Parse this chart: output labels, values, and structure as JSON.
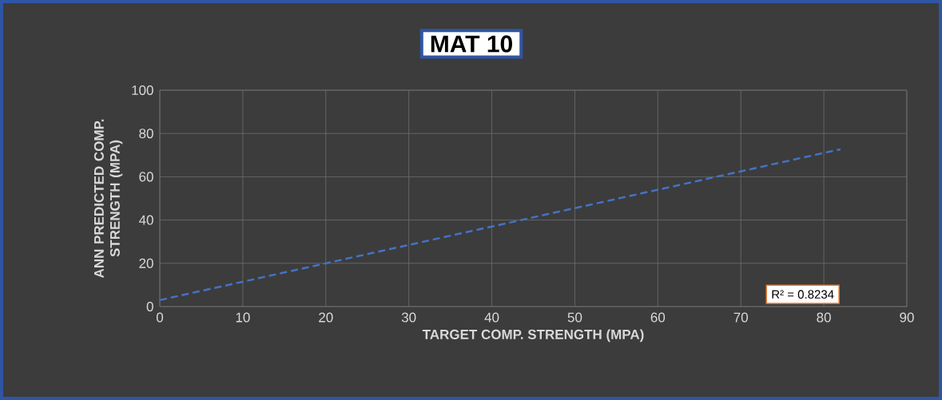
{
  "chart_data": {
    "type": "line",
    "title": "MAT 10",
    "xlabel": "TARGET COMP. STRENGTH (MPA)",
    "ylabel": "ANN PREDICTED COMP. STRENGTH (MPA)",
    "series": [
      {
        "x": [
          0,
          82
        ],
        "values": [
          3,
          72.7
        ],
        "color": "#4472c4"
      }
    ],
    "xlim": [
      0,
      90
    ],
    "xticks": [
      0,
      10,
      20,
      30,
      40,
      50,
      60,
      70,
      80,
      90
    ],
    "ylim": [
      0,
      100
    ],
    "yticks": [
      0,
      20,
      40,
      60,
      80,
      100
    ],
    "grid": true,
    "marker": "none",
    "line_style": "dashed",
    "annotations": [
      "R² = 0.8234"
    ]
  }
}
